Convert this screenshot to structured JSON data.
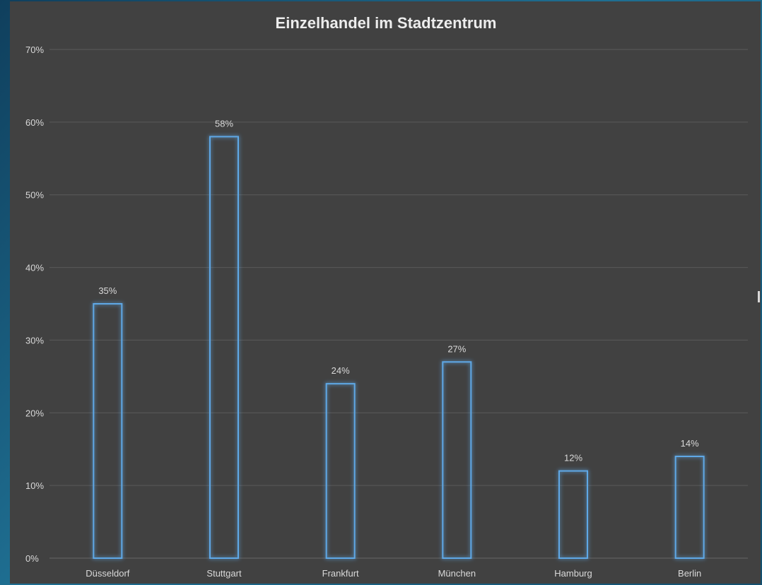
{
  "chart_data": {
    "type": "bar",
    "title": "Einzelhandel im Stadtzentrum",
    "categories": [
      "Düsseldorf",
      "Stuttgart",
      "Frankfurt",
      "München",
      "Hamburg",
      "Berlin"
    ],
    "values": [
      35,
      58,
      24,
      27,
      12,
      14
    ],
    "value_labels": [
      "35%",
      "58%",
      "24%",
      "27%",
      "12%",
      "14%"
    ],
    "ylim": [
      0,
      70
    ],
    "yticks": [
      0,
      10,
      20,
      30,
      40,
      50,
      60,
      70
    ],
    "ytick_labels": [
      "0%",
      "10%",
      "20%",
      "30%",
      "40%",
      "50%",
      "60%",
      "70%"
    ],
    "grid": true,
    "legend": "none",
    "colors": {
      "background": "#414141",
      "bar_stroke": "#5ea8e6",
      "bar_glow": "#2f7cc4",
      "text": "#d9d9d9",
      "grid": "#5a5a5a"
    }
  }
}
